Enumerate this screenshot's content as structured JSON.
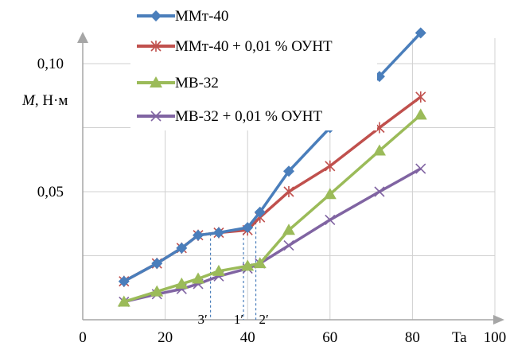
{
  "chart_data": {
    "type": "line",
    "title": "",
    "xlabel": "Ta",
    "ylabel_prefix": "M",
    "ylabel_suffix": ", Н·м",
    "xlim": [
      0,
      100
    ],
    "ylim": [
      0,
      0.12
    ],
    "x_ticks": [
      0,
      20,
      40,
      60,
      80,
      100
    ],
    "x_tick_labels": [
      "0",
      "20",
      "40",
      "60",
      "80",
      "100"
    ],
    "y_ticks": [
      0.05,
      0.1
    ],
    "y_tick_labels": [
      "0,05",
      "0,10"
    ],
    "grid": "major",
    "legend_position": "top-left",
    "series": [
      {
        "name": "ММт-40",
        "color": "#4a7ebb",
        "marker": "diamond",
        "x": [
          10,
          18,
          24,
          28,
          33,
          40,
          43,
          50,
          60,
          72,
          82
        ],
        "y": [
          0.015,
          0.022,
          0.028,
          0.033,
          0.034,
          0.036,
          0.042,
          0.058,
          0.075,
          0.095,
          0.112
        ]
      },
      {
        "name": "ММт-40 + 0,01 % ОУНТ",
        "color": "#c0504d",
        "marker": "asterisk",
        "x": [
          10,
          18,
          24,
          28,
          33,
          40,
          43,
          50,
          60,
          72,
          82
        ],
        "y": [
          0.015,
          0.022,
          0.028,
          0.033,
          0.034,
          0.035,
          0.04,
          0.05,
          0.06,
          0.075,
          0.087
        ]
      },
      {
        "name": "МВ-32",
        "color": "#9bbb59",
        "marker": "triangle",
        "x": [
          10,
          18,
          24,
          28,
          33,
          40,
          43,
          50,
          60,
          72,
          82
        ],
        "y": [
          0.007,
          0.011,
          0.014,
          0.016,
          0.019,
          0.021,
          0.022,
          0.035,
          0.049,
          0.066,
          0.08
        ]
      },
      {
        "name": "МВ-32 + 0,01 % ОУНТ",
        "color": "#8064a2",
        "marker": "x",
        "x": [
          10,
          18,
          24,
          28,
          33,
          40,
          43,
          50,
          60,
          72,
          82
        ],
        "y": [
          0.007,
          0.01,
          0.012,
          0.014,
          0.017,
          0.02,
          0.022,
          0.029,
          0.039,
          0.05,
          0.059
        ]
      }
    ],
    "annotations": [
      {
        "label": "3′",
        "x": 31
      },
      {
        "label": "1′",
        "x": 39
      },
      {
        "label": "2′",
        "x": 42
      }
    ]
  }
}
